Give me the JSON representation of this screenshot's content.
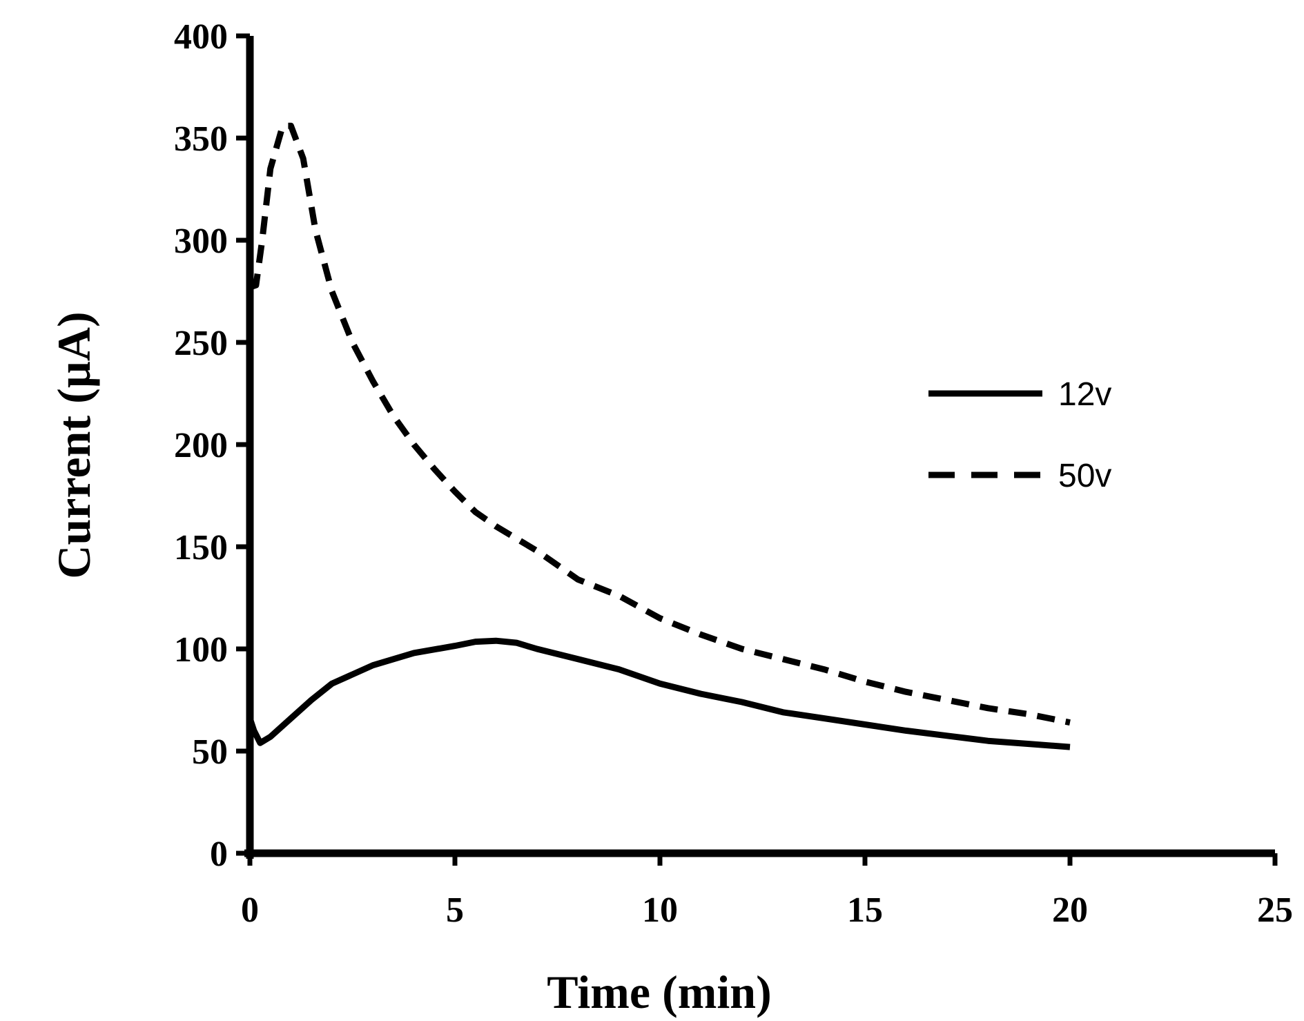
{
  "chart_data": {
    "type": "line",
    "title": "",
    "xlabel": "Time (min)",
    "ylabel": "Current (µA)",
    "xlim": [
      0,
      25
    ],
    "ylim": [
      0,
      400
    ],
    "x_ticks": [
      0,
      5,
      10,
      15,
      20,
      25
    ],
    "y_ticks": [
      0,
      50,
      100,
      150,
      200,
      250,
      300,
      350,
      400
    ],
    "grid": false,
    "legend_position": "right",
    "series": [
      {
        "name": "12v",
        "style": "solid",
        "color": "#000000",
        "points": [
          [
            0,
            66
          ],
          [
            0.1,
            60
          ],
          [
            0.25,
            54
          ],
          [
            0.5,
            57
          ],
          [
            1,
            66
          ],
          [
            1.5,
            75
          ],
          [
            2,
            83
          ],
          [
            3,
            92
          ],
          [
            4,
            98
          ],
          [
            5,
            101.5
          ],
          [
            5.5,
            103.5
          ],
          [
            6,
            104
          ],
          [
            6.5,
            103
          ],
          [
            7,
            100
          ],
          [
            8,
            95
          ],
          [
            9,
            90
          ],
          [
            10,
            83
          ],
          [
            11,
            78
          ],
          [
            12,
            74
          ],
          [
            13,
            69
          ],
          [
            14,
            66
          ],
          [
            15,
            63
          ],
          [
            16,
            60
          ],
          [
            17,
            57.5
          ],
          [
            18,
            55
          ],
          [
            19,
            53.5
          ],
          [
            20,
            52
          ]
        ]
      },
      {
        "name": "50v",
        "style": "dashed",
        "color": "#000000",
        "points": [
          [
            0,
            277
          ],
          [
            0.15,
            278
          ],
          [
            0.3,
            300
          ],
          [
            0.5,
            335
          ],
          [
            0.8,
            356
          ],
          [
            1,
            356
          ],
          [
            1.3,
            340
          ],
          [
            1.6,
            305
          ],
          [
            2,
            275
          ],
          [
            2.5,
            250
          ],
          [
            3,
            231
          ],
          [
            3.5,
            214
          ],
          [
            4,
            200
          ],
          [
            4.5,
            188
          ],
          [
            5,
            177
          ],
          [
            5.5,
            167
          ],
          [
            6,
            160
          ],
          [
            7,
            148
          ],
          [
            8,
            134
          ],
          [
            9,
            126
          ],
          [
            10,
            115
          ],
          [
            11,
            107
          ],
          [
            12,
            100
          ],
          [
            13,
            95
          ],
          [
            14,
            90
          ],
          [
            15,
            84
          ],
          [
            16,
            79
          ],
          [
            17,
            75
          ],
          [
            18,
            71
          ],
          [
            19,
            68
          ],
          [
            20,
            64
          ]
        ]
      }
    ]
  }
}
